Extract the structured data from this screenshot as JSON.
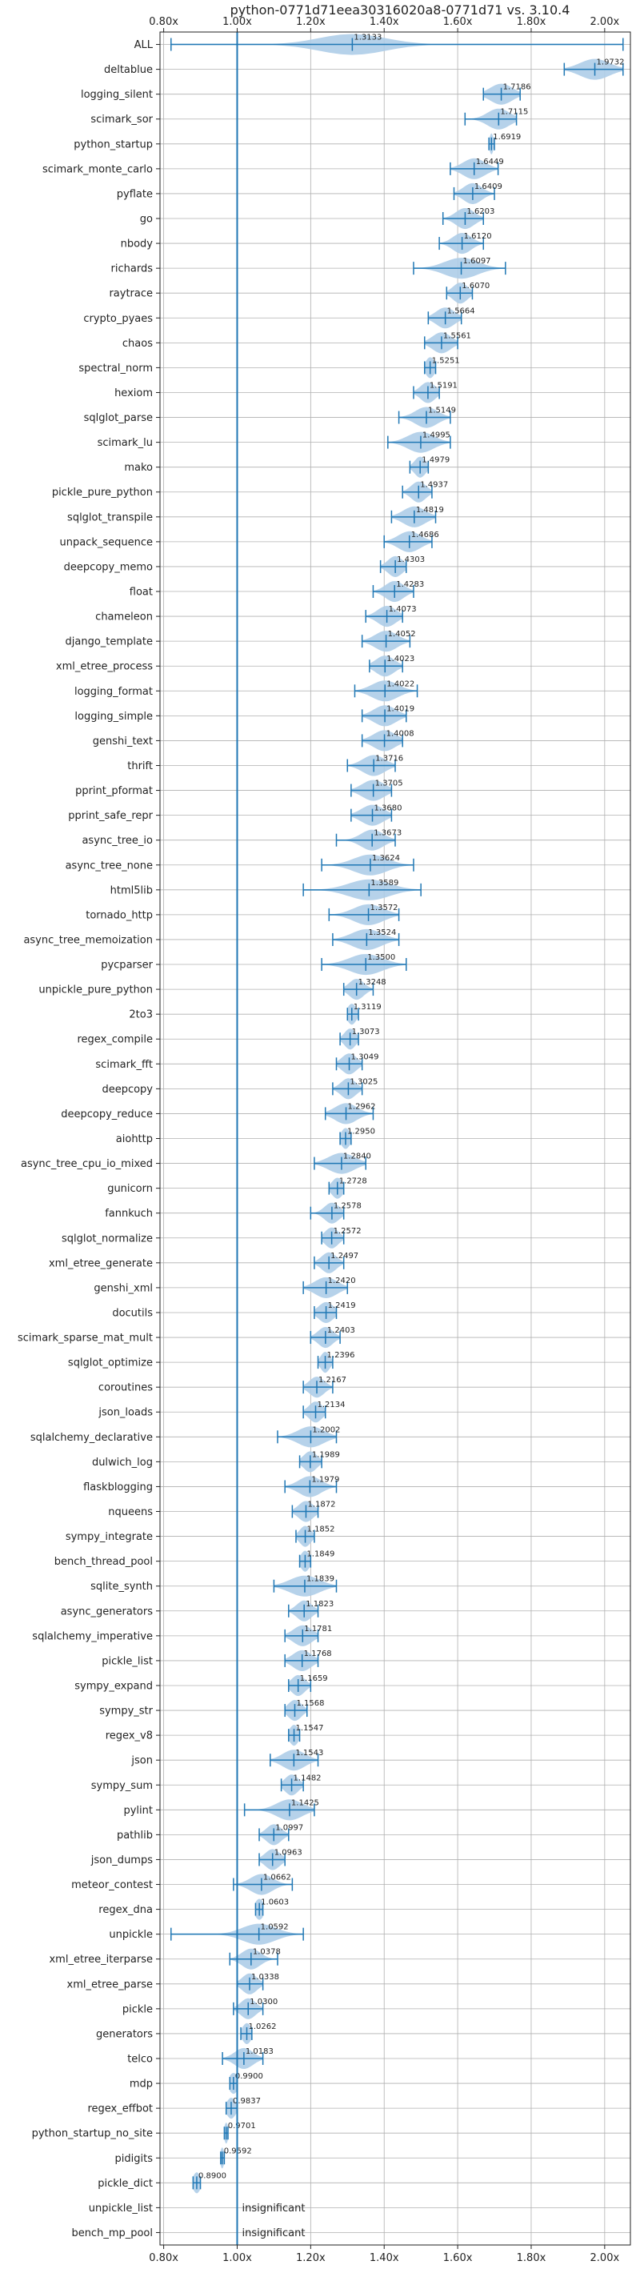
{
  "chart_data": {
    "type": "violin",
    "title": "python-0771d71eea30316020a8-0771d71 vs. 3.10.4",
    "xlabel": "",
    "ylabel": "",
    "xlim": [
      0.79,
      2.07
    ],
    "xticks": [
      0.8,
      1.0,
      1.2,
      1.4,
      1.6,
      1.8,
      2.0
    ],
    "xtick_labels": [
      "0.80x",
      "1.00x",
      "1.20x",
      "1.40x",
      "1.60x",
      "1.80x",
      "2.00x"
    ],
    "reference_line": 1.0,
    "grid": true,
    "color": "#1f77b4",
    "fill_color": "#aecde8",
    "insignificant_label": "insignificant",
    "rows": [
      {
        "name": "ALL",
        "median": 1.3133,
        "min": 0.82,
        "max": 2.05,
        "label": "1.3133",
        "spread": 0.09
      },
      {
        "name": "deltablue",
        "median": 1.9732,
        "min": 1.89,
        "max": 2.05,
        "label": "1.9732",
        "spread": 0.04
      },
      {
        "name": "logging_silent",
        "median": 1.7186,
        "min": 1.67,
        "max": 1.77,
        "label": "1.7186",
        "spread": 0.03
      },
      {
        "name": "scimark_sor",
        "median": 1.7115,
        "min": 1.62,
        "max": 1.76,
        "label": "1.7115",
        "spread": 0.03
      },
      {
        "name": "python_startup",
        "median": 1.6919,
        "min": 1.685,
        "max": 1.7,
        "label": "1.6919",
        "spread": 0.005
      },
      {
        "name": "scimark_monte_carlo",
        "median": 1.6449,
        "min": 1.58,
        "max": 1.71,
        "label": "1.6449",
        "spread": 0.03
      },
      {
        "name": "pyflate",
        "median": 1.6409,
        "min": 1.59,
        "max": 1.7,
        "label": "1.6409",
        "spread": 0.025
      },
      {
        "name": "go",
        "median": 1.6203,
        "min": 1.56,
        "max": 1.67,
        "label": "1.6203",
        "spread": 0.025
      },
      {
        "name": "nbody",
        "median": 1.612,
        "min": 1.55,
        "max": 1.67,
        "label": "1.6120",
        "spread": 0.025
      },
      {
        "name": "richards",
        "median": 1.6097,
        "min": 1.48,
        "max": 1.73,
        "label": "1.6097",
        "spread": 0.045
      },
      {
        "name": "raytrace",
        "median": 1.607,
        "min": 1.57,
        "max": 1.64,
        "label": "1.6070",
        "spread": 0.02
      },
      {
        "name": "crypto_pyaes",
        "median": 1.5664,
        "min": 1.52,
        "max": 1.61,
        "label": "1.5664",
        "spread": 0.025
      },
      {
        "name": "chaos",
        "median": 1.5561,
        "min": 1.51,
        "max": 1.6,
        "label": "1.5561",
        "spread": 0.025
      },
      {
        "name": "spectral_norm",
        "median": 1.5251,
        "min": 1.51,
        "max": 1.54,
        "label": "1.5251",
        "spread": 0.012
      },
      {
        "name": "hexiom",
        "median": 1.5191,
        "min": 1.48,
        "max": 1.55,
        "label": "1.5191",
        "spread": 0.02
      },
      {
        "name": "sqlglot_parse",
        "median": 1.5149,
        "min": 1.44,
        "max": 1.58,
        "label": "1.5149",
        "spread": 0.03
      },
      {
        "name": "scimark_lu",
        "median": 1.4995,
        "min": 1.41,
        "max": 1.58,
        "label": "1.4995",
        "spread": 0.035
      },
      {
        "name": "mako",
        "median": 1.4979,
        "min": 1.47,
        "max": 1.52,
        "label": "1.4979",
        "spread": 0.015
      },
      {
        "name": "pickle_pure_python",
        "median": 1.4937,
        "min": 1.45,
        "max": 1.53,
        "label": "1.4937",
        "spread": 0.02
      },
      {
        "name": "sqlglot_transpile",
        "median": 1.4819,
        "min": 1.42,
        "max": 1.54,
        "label": "1.4819",
        "spread": 0.03
      },
      {
        "name": "unpack_sequence",
        "median": 1.4686,
        "min": 1.4,
        "max": 1.53,
        "label": "1.4686",
        "spread": 0.03
      },
      {
        "name": "deepcopy_memo",
        "median": 1.4303,
        "min": 1.39,
        "max": 1.46,
        "label": "1.4303",
        "spread": 0.02
      },
      {
        "name": "float",
        "median": 1.4283,
        "min": 1.37,
        "max": 1.48,
        "label": "1.4283",
        "spread": 0.025
      },
      {
        "name": "chameleon",
        "median": 1.4073,
        "min": 1.35,
        "max": 1.45,
        "label": "1.4073",
        "spread": 0.025
      },
      {
        "name": "django_template",
        "median": 1.4052,
        "min": 1.34,
        "max": 1.47,
        "label": "1.4052",
        "spread": 0.03
      },
      {
        "name": "xml_etree_process",
        "median": 1.4023,
        "min": 1.36,
        "max": 1.45,
        "label": "1.4023",
        "spread": 0.025
      },
      {
        "name": "logging_format",
        "median": 1.4022,
        "min": 1.32,
        "max": 1.49,
        "label": "1.4022",
        "spread": 0.035
      },
      {
        "name": "logging_simple",
        "median": 1.4019,
        "min": 1.34,
        "max": 1.46,
        "label": "1.4019",
        "spread": 0.03
      },
      {
        "name": "genshi_text",
        "median": 1.4008,
        "min": 1.34,
        "max": 1.45,
        "label": "1.4008",
        "spread": 0.03
      },
      {
        "name": "thrift",
        "median": 1.3716,
        "min": 1.3,
        "max": 1.43,
        "label": "1.3716",
        "spread": 0.03
      },
      {
        "name": "pprint_pformat",
        "median": 1.3705,
        "min": 1.31,
        "max": 1.42,
        "label": "1.3705",
        "spread": 0.03
      },
      {
        "name": "pprint_safe_repr",
        "median": 1.368,
        "min": 1.31,
        "max": 1.42,
        "label": "1.3680",
        "spread": 0.03
      },
      {
        "name": "async_tree_io",
        "median": 1.3673,
        "min": 1.27,
        "max": 1.43,
        "label": "1.3673",
        "spread": 0.03
      },
      {
        "name": "async_tree_none",
        "median": 1.3624,
        "min": 1.23,
        "max": 1.48,
        "label": "1.3624",
        "spread": 0.045
      },
      {
        "name": "html5lib",
        "median": 1.3589,
        "min": 1.18,
        "max": 1.5,
        "label": "1.3589",
        "spread": 0.055
      },
      {
        "name": "tornado_http",
        "median": 1.3572,
        "min": 1.25,
        "max": 1.44,
        "label": "1.3572",
        "spread": 0.04
      },
      {
        "name": "async_tree_memoization",
        "median": 1.3524,
        "min": 1.26,
        "max": 1.44,
        "label": "1.3524",
        "spread": 0.04
      },
      {
        "name": "pycparser",
        "median": 1.35,
        "min": 1.23,
        "max": 1.46,
        "label": "1.3500",
        "spread": 0.045
      },
      {
        "name": "unpickle_pure_python",
        "median": 1.3248,
        "min": 1.29,
        "max": 1.37,
        "label": "1.3248",
        "spread": 0.02
      },
      {
        "name": "2to3",
        "median": 1.3119,
        "min": 1.3,
        "max": 1.33,
        "label": "1.3119",
        "spread": 0.012
      },
      {
        "name": "regex_compile",
        "median": 1.3073,
        "min": 1.28,
        "max": 1.33,
        "label": "1.3073",
        "spread": 0.015
      },
      {
        "name": "scimark_fft",
        "median": 1.3049,
        "min": 1.27,
        "max": 1.34,
        "label": "1.3049",
        "spread": 0.02
      },
      {
        "name": "deepcopy",
        "median": 1.3025,
        "min": 1.26,
        "max": 1.34,
        "label": "1.3025",
        "spread": 0.02
      },
      {
        "name": "deepcopy_reduce",
        "median": 1.2962,
        "min": 1.24,
        "max": 1.37,
        "label": "1.2962",
        "spread": 0.03
      },
      {
        "name": "aiohttp",
        "median": 1.295,
        "min": 1.28,
        "max": 1.31,
        "label": "1.2950",
        "spread": 0.012
      },
      {
        "name": "async_tree_cpu_io_mixed",
        "median": 1.284,
        "min": 1.21,
        "max": 1.35,
        "label": "1.2840",
        "spread": 0.035
      },
      {
        "name": "gunicorn",
        "median": 1.2728,
        "min": 1.25,
        "max": 1.29,
        "label": "1.2728",
        "spread": 0.015
      },
      {
        "name": "fannkuch",
        "median": 1.2578,
        "min": 1.2,
        "max": 1.29,
        "label": "1.2578",
        "spread": 0.02
      },
      {
        "name": "sqlglot_normalize",
        "median": 1.2572,
        "min": 1.23,
        "max": 1.29,
        "label": "1.2572",
        "spread": 0.018
      },
      {
        "name": "xml_etree_generate",
        "median": 1.2497,
        "min": 1.21,
        "max": 1.29,
        "label": "1.2497",
        "spread": 0.02
      },
      {
        "name": "genshi_xml",
        "median": 1.242,
        "min": 1.18,
        "max": 1.3,
        "label": "1.2420",
        "spread": 0.03
      },
      {
        "name": "docutils",
        "median": 1.2419,
        "min": 1.21,
        "max": 1.27,
        "label": "1.2419",
        "spread": 0.02
      },
      {
        "name": "scimark_sparse_mat_mult",
        "median": 1.2403,
        "min": 1.2,
        "max": 1.28,
        "label": "1.2403",
        "spread": 0.02
      },
      {
        "name": "sqlglot_optimize",
        "median": 1.2396,
        "min": 1.22,
        "max": 1.26,
        "label": "1.2396",
        "spread": 0.012
      },
      {
        "name": "coroutines",
        "median": 1.2167,
        "min": 1.18,
        "max": 1.26,
        "label": "1.2167",
        "spread": 0.02
      },
      {
        "name": "json_loads",
        "median": 1.2134,
        "min": 1.18,
        "max": 1.24,
        "label": "1.2134",
        "spread": 0.018
      },
      {
        "name": "sqlalchemy_declarative",
        "median": 1.2002,
        "min": 1.11,
        "max": 1.27,
        "label": "1.2002",
        "spread": 0.035
      },
      {
        "name": "dulwich_log",
        "median": 1.1989,
        "min": 1.17,
        "max": 1.23,
        "label": "1.1989",
        "spread": 0.018
      },
      {
        "name": "flaskblogging",
        "median": 1.1979,
        "min": 1.13,
        "max": 1.27,
        "label": "1.1979",
        "spread": 0.03
      },
      {
        "name": "nqueens",
        "median": 1.1872,
        "min": 1.15,
        "max": 1.22,
        "label": "1.1872",
        "spread": 0.02
      },
      {
        "name": "sympy_integrate",
        "median": 1.1852,
        "min": 1.16,
        "max": 1.21,
        "label": "1.1852",
        "spread": 0.015
      },
      {
        "name": "bench_thread_pool",
        "median": 1.1849,
        "min": 1.17,
        "max": 1.2,
        "label": "1.1849",
        "spread": 0.012
      },
      {
        "name": "sqlite_synth",
        "median": 1.1839,
        "min": 1.1,
        "max": 1.27,
        "label": "1.1839",
        "spread": 0.04
      },
      {
        "name": "async_generators",
        "median": 1.1823,
        "min": 1.14,
        "max": 1.22,
        "label": "1.1823",
        "spread": 0.02
      },
      {
        "name": "sqlalchemy_imperative",
        "median": 1.1781,
        "min": 1.13,
        "max": 1.22,
        "label": "1.1781",
        "spread": 0.025
      },
      {
        "name": "pickle_list",
        "median": 1.1768,
        "min": 1.13,
        "max": 1.22,
        "label": "1.1768",
        "spread": 0.025
      },
      {
        "name": "sympy_expand",
        "median": 1.1659,
        "min": 1.14,
        "max": 1.2,
        "label": "1.1659",
        "spread": 0.018
      },
      {
        "name": "sympy_str",
        "median": 1.1568,
        "min": 1.13,
        "max": 1.19,
        "label": "1.1568",
        "spread": 0.018
      },
      {
        "name": "regex_v8",
        "median": 1.1547,
        "min": 1.14,
        "max": 1.17,
        "label": "1.1547",
        "spread": 0.012
      },
      {
        "name": "json",
        "median": 1.1543,
        "min": 1.09,
        "max": 1.22,
        "label": "1.1543",
        "spread": 0.03
      },
      {
        "name": "sympy_sum",
        "median": 1.1482,
        "min": 1.12,
        "max": 1.18,
        "label": "1.1482",
        "spread": 0.018
      },
      {
        "name": "pylint",
        "median": 1.1425,
        "min": 1.02,
        "max": 1.21,
        "label": "1.1425",
        "spread": 0.035
      },
      {
        "name": "pathlib",
        "median": 1.0997,
        "min": 1.06,
        "max": 1.14,
        "label": "1.0997",
        "spread": 0.02
      },
      {
        "name": "json_dumps",
        "median": 1.0963,
        "min": 1.06,
        "max": 1.13,
        "label": "1.0963",
        "spread": 0.02
      },
      {
        "name": "meteor_contest",
        "median": 1.0662,
        "min": 0.99,
        "max": 1.15,
        "label": "1.0662",
        "spread": 0.03
      },
      {
        "name": "regex_dna",
        "median": 1.0603,
        "min": 1.05,
        "max": 1.07,
        "label": "1.0603",
        "spread": 0.012
      },
      {
        "name": "unpickle",
        "median": 1.0592,
        "min": 0.82,
        "max": 1.18,
        "label": "1.0592",
        "spread": 0.045
      },
      {
        "name": "xml_etree_iterparse",
        "median": 1.0378,
        "min": 0.98,
        "max": 1.11,
        "label": "1.0378",
        "spread": 0.025
      },
      {
        "name": "xml_etree_parse",
        "median": 1.0338,
        "min": 1.0,
        "max": 1.07,
        "label": "1.0338",
        "spread": 0.02
      },
      {
        "name": "pickle",
        "median": 1.03,
        "min": 0.99,
        "max": 1.07,
        "label": "1.0300",
        "spread": 0.02
      },
      {
        "name": "generators",
        "median": 1.0262,
        "min": 1.01,
        "max": 1.04,
        "label": "1.0262",
        "spread": 0.012
      },
      {
        "name": "telco",
        "median": 1.0183,
        "min": 0.96,
        "max": 1.07,
        "label": "1.0183",
        "spread": 0.025
      },
      {
        "name": "mdp",
        "median": 0.99,
        "min": 0.98,
        "max": 1.0,
        "label": "0.9900",
        "spread": 0.012
      },
      {
        "name": "regex_effbot",
        "median": 0.9837,
        "min": 0.97,
        "max": 1.0,
        "label": "0.9837",
        "spread": 0.012
      },
      {
        "name": "python_startup_no_site",
        "median": 0.9701,
        "min": 0.965,
        "max": 0.975,
        "label": "0.9701",
        "spread": 0.005
      },
      {
        "name": "pidigits",
        "median": 0.9592,
        "min": 0.955,
        "max": 0.965,
        "label": "0.9592",
        "spread": 0.005
      },
      {
        "name": "pickle_dict",
        "median": 0.89,
        "min": 0.88,
        "max": 0.9,
        "label": "0.8900",
        "spread": 0.01
      },
      {
        "name": "unpickle_list",
        "insignificant": true
      },
      {
        "name": "bench_mp_pool",
        "insignificant": true
      }
    ]
  }
}
